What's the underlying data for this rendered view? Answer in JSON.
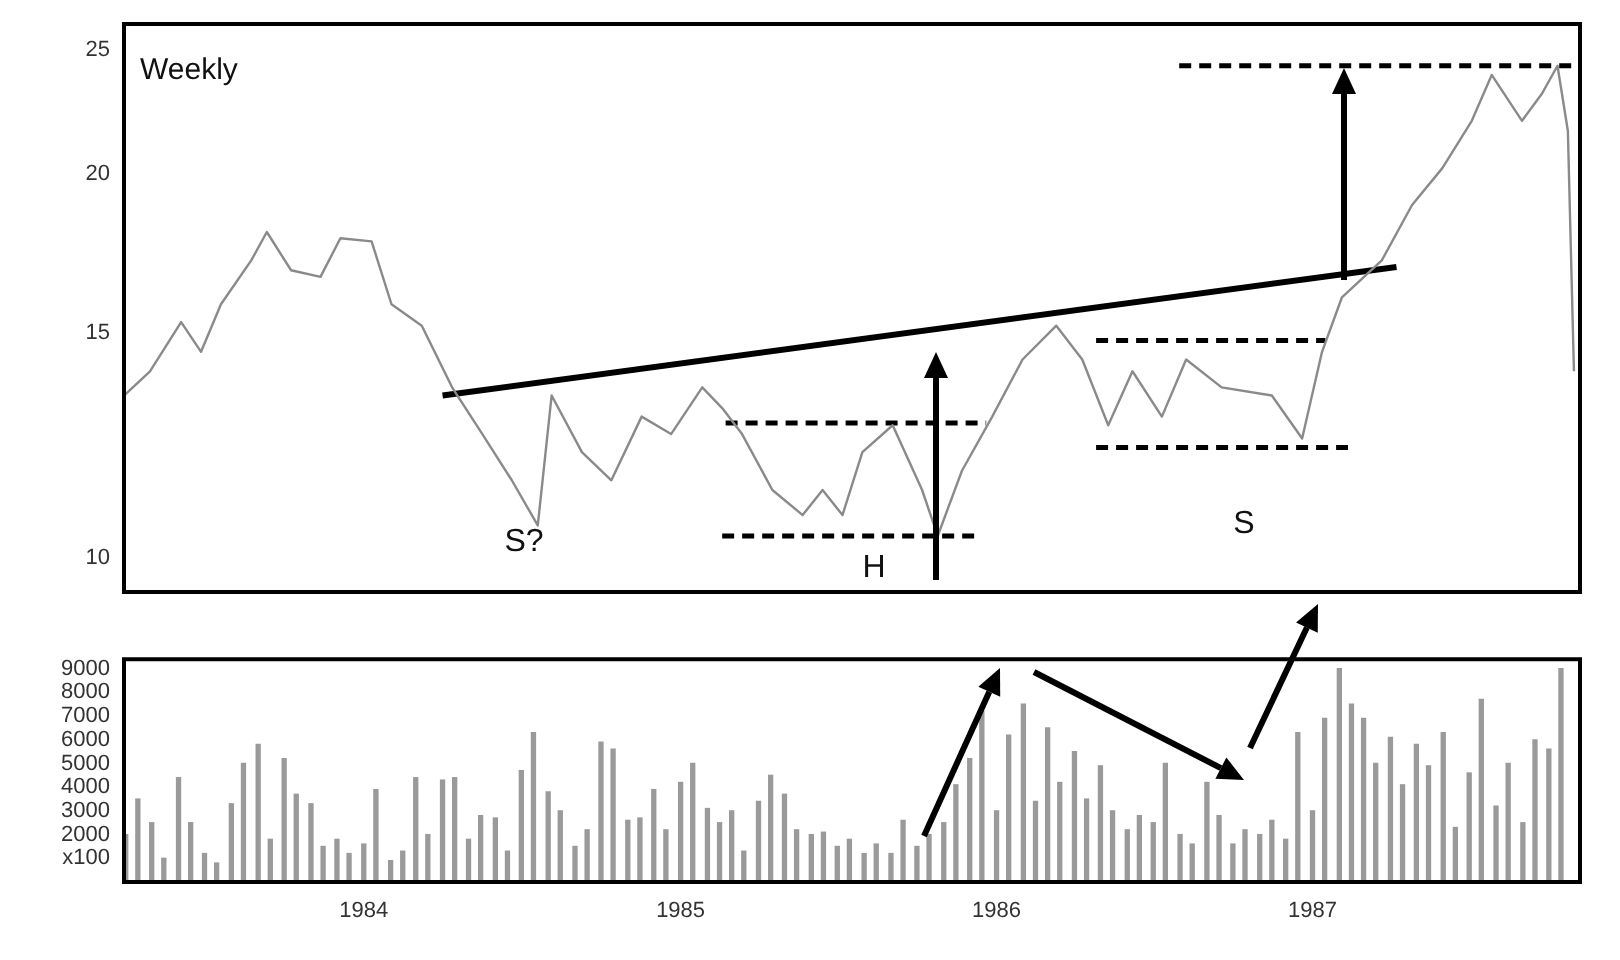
{
  "chart_data": [
    {
      "type": "line",
      "title": "Weekly",
      "xlim": [
        "1983-03-30",
        "1987-11-06"
      ],
      "ylim": [
        9.4,
        26.2
      ],
      "yticks": [
        10,
        15,
        20,
        25
      ],
      "log": true,
      "grid": false,
      "legend": false,
      "tick_labels": "y",
      "marker": "none",
      "series": [
        {
          "color": "#8a8a8a",
          "x": [
            "1983-03-30",
            "1983-04-29",
            "1983-06-04",
            "1983-06-27",
            "1983-07-20",
            "1983-08-24",
            "1983-09-11",
            "1983-10-09",
            "1983-11-12",
            "1983-12-05",
            "1984-01-10",
            "1984-02-02",
            "1984-03-08",
            "1984-04-12",
            "1984-05-17",
            "1984-06-20",
            "1984-07-20",
            "1984-08-05",
            "1984-09-09",
            "1984-10-13",
            "1984-11-17",
            "1984-12-21",
            "1985-01-26",
            "1985-02-18",
            "1985-03-13",
            "1985-04-17",
            "1985-05-22",
            "1985-06-14",
            "1985-07-07",
            "1985-07-30",
            "1985-09-03",
            "1985-10-07",
            "1985-10-25",
            "1985-11-22",
            "1985-12-27",
            "1986-01-31",
            "1986-03-11",
            "1986-04-10",
            "1986-05-10",
            "1986-06-07",
            "1986-07-11",
            "1986-08-08",
            "1986-09-18",
            "1986-11-15",
            "1986-12-20",
            "1987-01-12",
            "1987-02-04",
            "1987-03-22",
            "1987-04-26",
            "1987-05-31",
            "1987-07-04",
            "1987-07-27",
            "1987-08-31",
            "1987-09-23",
            "1987-10-11",
            "1987-10-23",
            "1987-10-30"
          ],
          "values": [
            13.4,
            14.0,
            15.3,
            14.5,
            15.8,
            17.1,
            18.0,
            16.8,
            16.6,
            17.8,
            17.7,
            15.8,
            15.2,
            13.6,
            12.5,
            11.5,
            10.6,
            13.4,
            12.1,
            11.5,
            12.9,
            12.5,
            13.6,
            13.1,
            12.5,
            11.3,
            10.8,
            11.3,
            10.8,
            12.1,
            12.7,
            11.3,
            10.4,
            11.7,
            12.9,
            14.3,
            15.2,
            14.3,
            12.7,
            14.0,
            12.9,
            14.3,
            13.6,
            13.4,
            12.4,
            14.5,
            16.0,
            17.1,
            18.9,
            20.2,
            22.0,
            23.9,
            22.0,
            23.1,
            24.3,
            21.6,
            14.0
          ]
        },
        {
          "type": "line",
          "color": "#000000",
          "x": [
            "1984-04-01",
            "1987-04-08"
          ],
          "values": [
            13.4,
            16.9
          ]
        },
        {
          "type": "line",
          "line_style": "dashed",
          "color": "#000000",
          "x": [
            "1985-02-22",
            "1985-12-20"
          ],
          "values": [
            12.75,
            12.75
          ]
        },
        {
          "type": "line",
          "line_style": "dashed",
          "color": "#000000",
          "x": [
            "1985-02-18",
            "1985-12-13"
          ],
          "values": [
            10.4,
            10.4
          ]
        },
        {
          "type": "line",
          "line_style": "dashed",
          "color": "#000000",
          "x": [
            "1986-04-26",
            "1987-01-16"
          ],
          "values": [
            14.8,
            14.8
          ]
        },
        {
          "type": "line",
          "line_style": "dashed",
          "color": "#000000",
          "x": [
            "1986-04-26",
            "1987-02-11"
          ],
          "values": [
            12.2,
            12.2
          ]
        },
        {
          "type": "line",
          "line_style": "dashed",
          "color": "#000000",
          "x": [
            "1986-07-31",
            "1987-10-27"
          ],
          "values": [
            24.3,
            24.3
          ]
        }
      ],
      "annotations": [
        "S?",
        "H",
        "S"
      ]
    },
    {
      "type": "bar",
      "xlim": [
        "1983-03-30",
        "1987-11-06"
      ],
      "xticks": [
        {
          "value": "1984",
          "label": "1984"
        },
        {
          "value": "1985",
          "label": "1985"
        },
        {
          "value": "1986",
          "label": "1986"
        },
        {
          "value": "1987",
          "label": "1987"
        }
      ],
      "ylim": [
        0,
        9400
      ],
      "yticks": [
        {
          "value": 1000,
          "label": "x100"
        },
        2000,
        3000,
        4000,
        5000,
        6000,
        7000,
        8000,
        9000
      ],
      "grid": false,
      "legend": false,
      "series": [
        {
          "color": "#9a9a9a",
          "x": [
            "1983-04-01",
            "1983-04-15",
            "1983-05-01",
            "1983-05-15",
            "1983-06-01",
            "1983-06-15",
            "1983-07-01",
            "1983-07-15",
            "1983-08-01",
            "1983-08-15",
            "1983-09-01",
            "1983-09-15",
            "1983-10-01",
            "1983-10-15",
            "1983-11-01",
            "1983-11-15",
            "1983-12-01",
            "1983-12-15",
            "1984-01-01",
            "1984-01-15",
            "1984-02-01",
            "1984-02-15",
            "1984-03-01",
            "1984-03-15",
            "1984-04-01",
            "1984-04-15",
            "1984-05-01",
            "1984-05-15",
            "1984-06-01",
            "1984-06-15",
            "1984-07-01",
            "1984-07-15",
            "1984-08-01",
            "1984-08-15",
            "1984-09-01",
            "1984-09-15",
            "1984-10-01",
            "1984-10-15",
            "1984-11-01",
            "1984-11-15",
            "1984-12-01",
            "1984-12-15",
            "1985-01-01",
            "1985-01-15",
            "1985-02-01",
            "1985-02-15",
            "1985-03-01",
            "1985-03-15",
            "1985-04-01",
            "1985-04-15",
            "1985-05-01",
            "1985-05-15",
            "1985-06-01",
            "1985-06-15",
            "1985-07-01",
            "1985-07-15",
            "1985-08-01",
            "1985-08-15",
            "1985-09-01",
            "1985-09-15",
            "1985-10-01",
            "1985-10-15",
            "1985-11-01",
            "1985-11-15",
            "1985-12-01",
            "1985-12-15",
            "1986-01-01",
            "1986-01-15",
            "1986-02-01",
            "1986-02-15",
            "1986-03-01",
            "1986-03-15",
            "1986-04-01",
            "1986-04-15",
            "1986-05-01",
            "1986-05-15",
            "1986-06-01",
            "1986-06-15",
            "1986-07-01",
            "1986-07-15",
            "1986-08-01",
            "1986-08-15",
            "1986-09-01",
            "1986-09-15",
            "1986-10-01",
            "1986-10-15",
            "1986-11-01",
            "1986-11-15",
            "1986-12-01",
            "1986-12-15",
            "1987-01-01",
            "1987-01-15",
            "1987-02-01",
            "1987-02-15",
            "1987-03-01",
            "1987-03-15",
            "1987-04-01",
            "1987-04-15",
            "1987-05-01",
            "1987-05-15",
            "1987-06-01",
            "1987-06-15",
            "1987-07-01",
            "1987-07-15",
            "1987-08-01",
            "1987-08-15",
            "1987-09-01",
            "1987-09-15",
            "1987-10-01",
            "1987-10-15"
          ],
          "values": [
            2000,
            3500,
            2500,
            1000,
            4400,
            2500,
            1200,
            800,
            3300,
            5000,
            5800,
            1800,
            5200,
            3700,
            3300,
            1500,
            1800,
            1200,
            1600,
            3900,
            900,
            1300,
            4400,
            2000,
            4300,
            4400,
            1800,
            2800,
            2700,
            1300,
            4700,
            6300,
            3800,
            3000,
            1500,
            2200,
            5900,
            5600,
            2600,
            2700,
            3900,
            2200,
            4200,
            5000,
            3100,
            2500,
            3000,
            1300,
            3400,
            4500,
            3700,
            2200,
            2000,
            2100,
            1500,
            1800,
            1200,
            1600,
            1200,
            2600,
            1500,
            2000,
            2500,
            4100,
            5200,
            7200,
            3000,
            6200,
            7500,
            3400,
            6500,
            4200,
            5500,
            3500,
            4900,
            3000,
            2200,
            2800,
            2500,
            5000,
            2000,
            1600,
            4200,
            2800,
            1600,
            2200,
            2000,
            2600,
            1800,
            6300,
            3000,
            6900,
            9000,
            7500,
            6900,
            5000,
            6100,
            4100,
            5800,
            4900,
            6300,
            2300,
            4600,
            7700,
            3200,
            5000,
            2500,
            6000,
            5600,
            9000
          ]
        }
      ]
    }
  ]
}
